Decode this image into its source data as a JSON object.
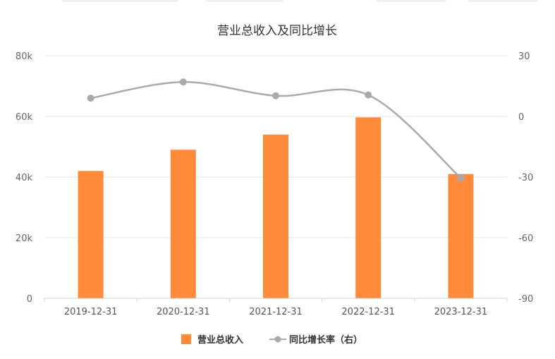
{
  "chart_data": {
    "type": "bar",
    "title": "营业总收入及同比增长",
    "categories": [
      "2019-12-31",
      "2020-12-31",
      "2021-12-31",
      "2022-12-31",
      "2023-12-31"
    ],
    "series": [
      {
        "name": "营业总收入",
        "type": "bar",
        "axis": "left",
        "color": "#ff8a3a",
        "values": [
          42000,
          49000,
          54000,
          59700,
          41000
        ]
      },
      {
        "name": "同比增长率（右）",
        "type": "line",
        "axis": "right",
        "color": "#aaaaaa",
        "values": [
          9,
          17,
          10.2,
          10.6,
          -30.5
        ]
      }
    ],
    "y_left": {
      "min": 0,
      "max": 80000,
      "ticks": [
        "0",
        "20k",
        "40k",
        "60k",
        "80k"
      ]
    },
    "y_right": {
      "min": -90,
      "max": 30,
      "ticks": [
        "-90",
        "-60",
        "-30",
        "0",
        "30"
      ]
    },
    "grid": true,
    "legend_position": "bottom"
  }
}
